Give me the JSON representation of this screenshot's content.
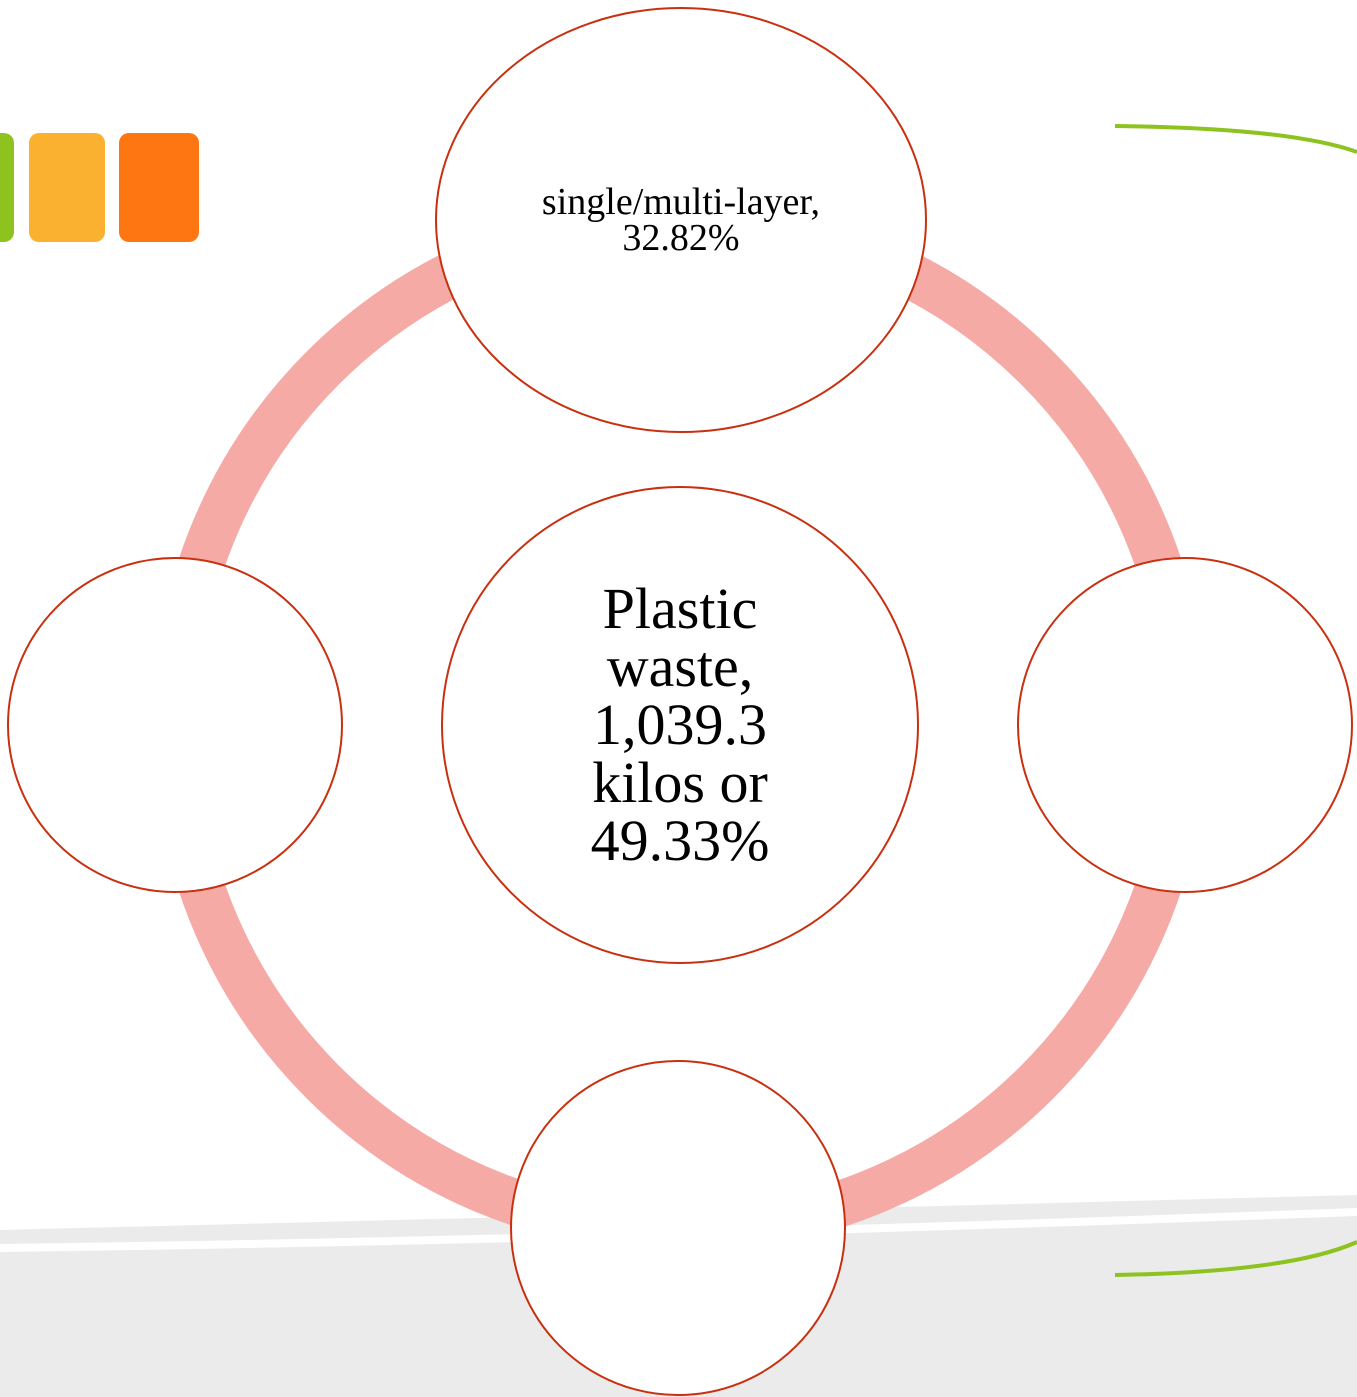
{
  "nodes": [
    {
      "label": "Plastic waste, 1,039.3 kilos or 49.33%"
    },
    {
      "label": "single/multi-layer, 32.82%"
    }
  ]
}
